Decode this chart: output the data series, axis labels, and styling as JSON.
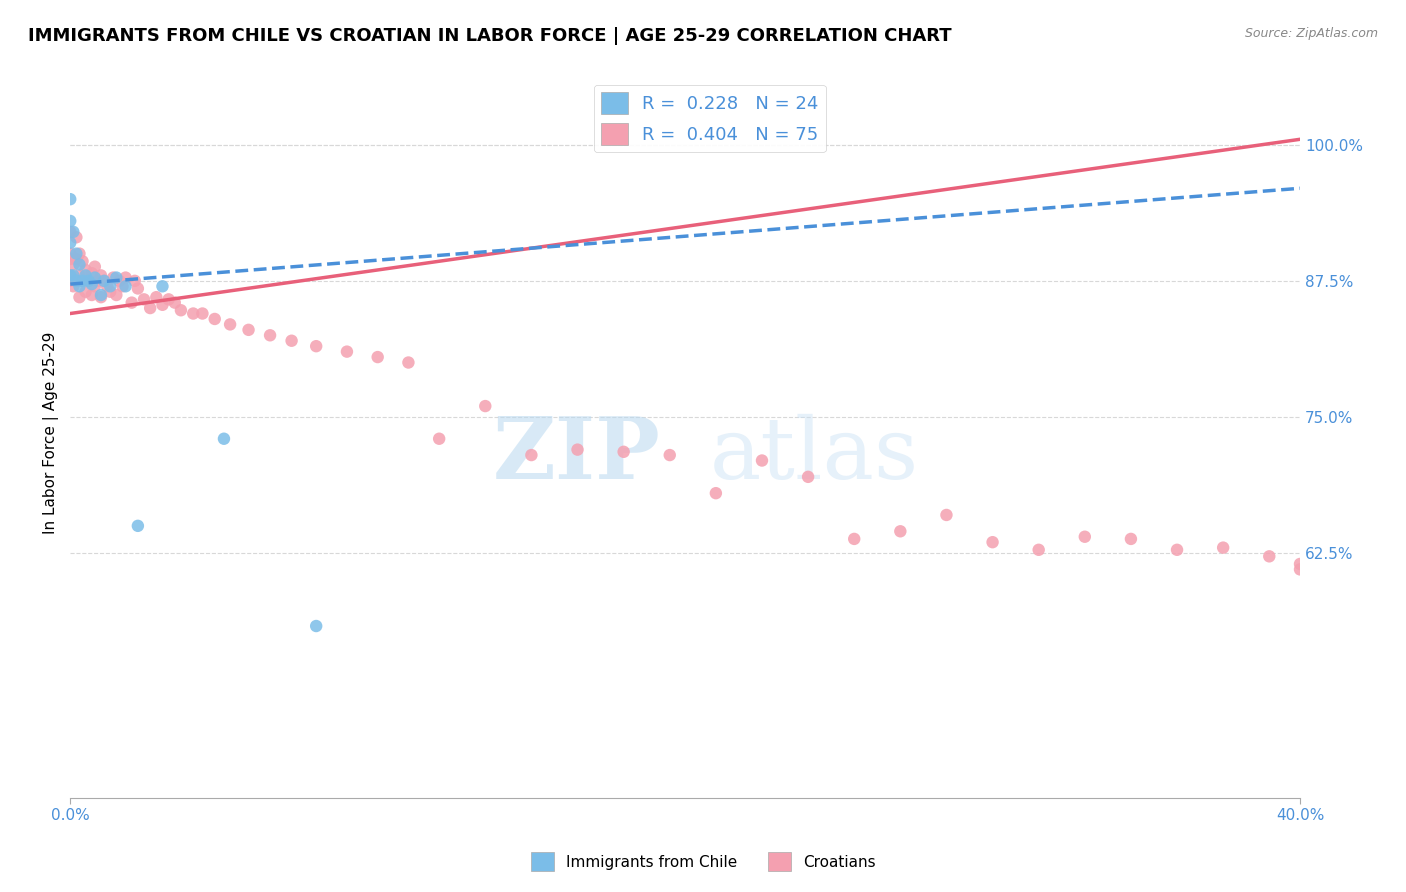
{
  "title": "IMMIGRANTS FROM CHILE VS CROATIAN IN LABOR FORCE | AGE 25-29 CORRELATION CHART",
  "source": "Source: ZipAtlas.com",
  "ylabel": "In Labor Force | Age 25-29",
  "xlim": [
    0.0,
    0.4
  ],
  "ylim": [
    0.4,
    1.07
  ],
  "ytick_vals": [
    0.625,
    0.75,
    0.875,
    1.0
  ],
  "ytick_labels": [
    "62.5%",
    "75.0%",
    "87.5%",
    "100.0%"
  ],
  "xtick_vals": [
    0.0,
    0.4
  ],
  "xtick_labels": [
    "0.0%",
    "40.0%"
  ],
  "r_chile": 0.228,
  "n_chile": 24,
  "r_croatian": 0.404,
  "n_croatian": 75,
  "chile_color": "#7bbde8",
  "croatian_color": "#f4a0b0",
  "chile_line_color": "#4a90d9",
  "croatian_line_color": "#e8607a",
  "tick_color": "#4a90d9",
  "grid_color": "#d8d8d8",
  "title_fontsize": 13,
  "axis_label_fontsize": 11,
  "tick_fontsize": 11,
  "legend_fontsize": 13,
  "chile_x": [
    0.0,
    0.0,
    0.0,
    0.0,
    0.001,
    0.001,
    0.002,
    0.002,
    0.003,
    0.003,
    0.004,
    0.005,
    0.006,
    0.007,
    0.008,
    0.01,
    0.011,
    0.013,
    0.015,
    0.018,
    0.022,
    0.03,
    0.05,
    0.08
  ],
  "chile_y": [
    0.88,
    0.91,
    0.93,
    0.95,
    0.88,
    0.92,
    0.875,
    0.9,
    0.87,
    0.89,
    0.875,
    0.88,
    0.875,
    0.872,
    0.878,
    0.862,
    0.875,
    0.87,
    0.878,
    0.87,
    0.65,
    0.87,
    0.73,
    0.558
  ],
  "croatian_x": [
    0.0,
    0.0,
    0.0,
    0.0,
    0.0,
    0.001,
    0.001,
    0.002,
    0.002,
    0.002,
    0.003,
    0.003,
    0.003,
    0.004,
    0.004,
    0.005,
    0.005,
    0.006,
    0.007,
    0.007,
    0.008,
    0.008,
    0.009,
    0.01,
    0.01,
    0.011,
    0.012,
    0.013,
    0.014,
    0.015,
    0.016,
    0.017,
    0.018,
    0.02,
    0.021,
    0.022,
    0.024,
    0.026,
    0.028,
    0.03,
    0.032,
    0.034,
    0.036,
    0.04,
    0.043,
    0.047,
    0.052,
    0.058,
    0.065,
    0.072,
    0.08,
    0.09,
    0.1,
    0.11,
    0.12,
    0.135,
    0.15,
    0.165,
    0.18,
    0.195,
    0.21,
    0.225,
    0.24,
    0.255,
    0.27,
    0.285,
    0.3,
    0.315,
    0.33,
    0.345,
    0.36,
    0.375,
    0.39,
    0.4,
    0.4
  ],
  "croatian_y": [
    0.88,
    0.9,
    0.92,
    0.875,
    0.895,
    0.87,
    0.89,
    0.875,
    0.895,
    0.915,
    0.86,
    0.88,
    0.9,
    0.875,
    0.893,
    0.865,
    0.885,
    0.875,
    0.862,
    0.882,
    0.87,
    0.888,
    0.875,
    0.86,
    0.88,
    0.875,
    0.87,
    0.865,
    0.878,
    0.862,
    0.875,
    0.87,
    0.878,
    0.855,
    0.875,
    0.868,
    0.858,
    0.85,
    0.86,
    0.853,
    0.858,
    0.855,
    0.848,
    0.845,
    0.845,
    0.84,
    0.835,
    0.83,
    0.825,
    0.82,
    0.815,
    0.81,
    0.805,
    0.8,
    0.73,
    0.76,
    0.715,
    0.72,
    0.718,
    0.715,
    0.68,
    0.71,
    0.695,
    0.638,
    0.645,
    0.66,
    0.635,
    0.628,
    0.64,
    0.638,
    0.628,
    0.63,
    0.622,
    0.615,
    0.61
  ]
}
